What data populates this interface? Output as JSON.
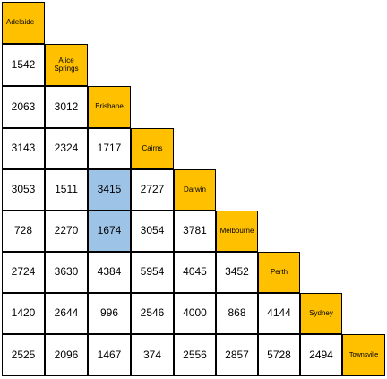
{
  "colors": {
    "city_header_bg": "#ffc000",
    "highlight_bg": "#9dc3e6",
    "cell_bg": "#ffffff",
    "border": "#000000"
  },
  "cities": [
    "Adelaide",
    "Alice\nSprings",
    "Brisbane",
    "Cairns",
    "Darwin",
    "Melbourne",
    "Perth",
    "Sydney",
    "Townsville"
  ],
  "distances": [
    [],
    [
      "1542"
    ],
    [
      "2063",
      "3012"
    ],
    [
      "3143",
      "2324",
      "1717"
    ],
    [
      "3053",
      "1511",
      "3415",
      "2727"
    ],
    [
      "728",
      "2270",
      "1674",
      "3054",
      "3781"
    ],
    [
      "2724",
      "3630",
      "4384",
      "5954",
      "4045",
      "3452"
    ],
    [
      "1420",
      "2644",
      "996",
      "2546",
      "4000",
      "868",
      "4144"
    ],
    [
      "2525",
      "2096",
      "1467",
      "374",
      "2556",
      "2857",
      "5728",
      "2494"
    ]
  ],
  "highlighted_cells": [
    {
      "row": 4,
      "col": 2
    },
    {
      "row": 5,
      "col": 2
    }
  ]
}
